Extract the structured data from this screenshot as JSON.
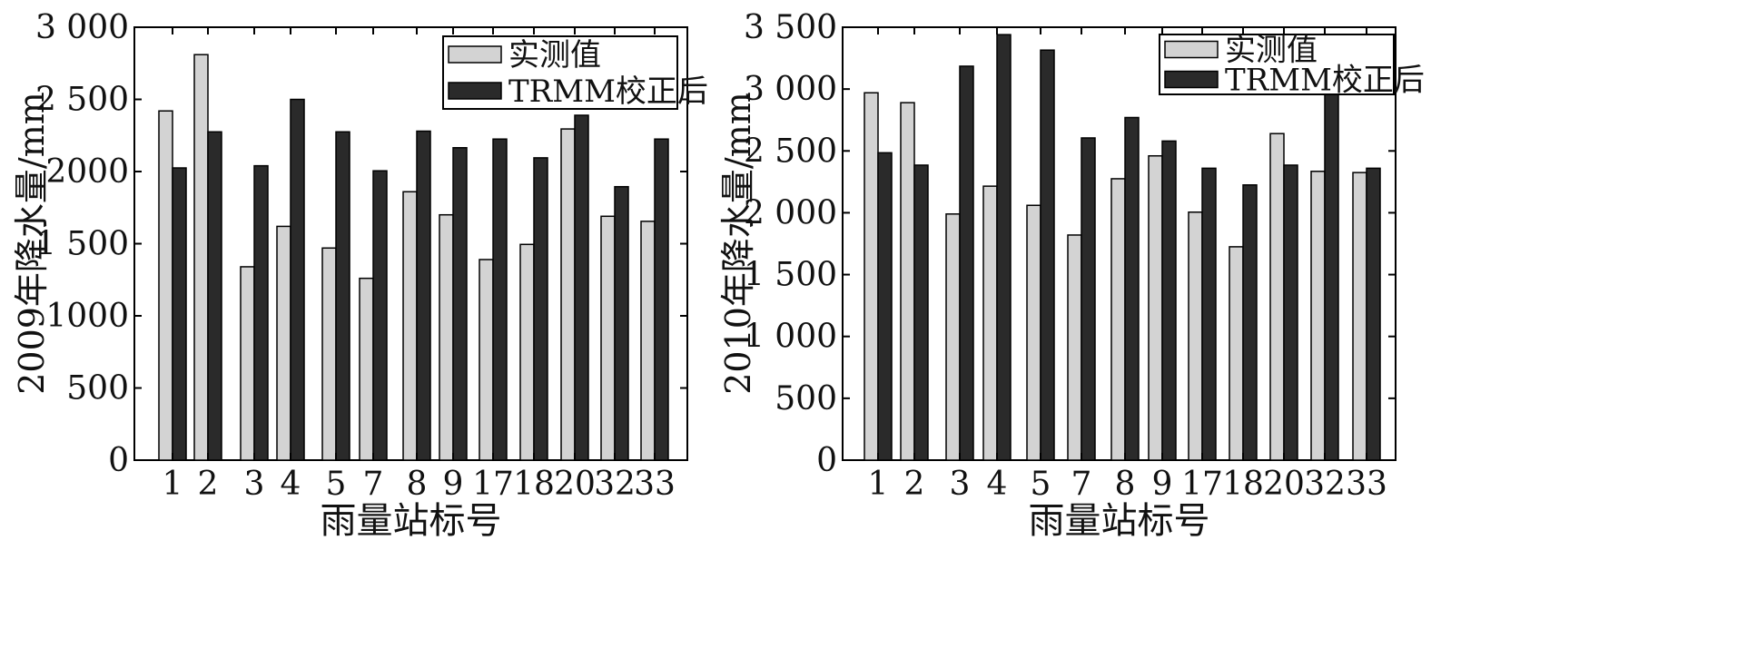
{
  "chart_data": [
    {
      "type": "bar",
      "ylabel": "2009年降水量/mm",
      "xlabel": "雨量站标号",
      "ylim": [
        0,
        3000
      ],
      "yticks": [
        0,
        500,
        1000,
        1500,
        2000,
        2500,
        3000
      ],
      "yticklabels": [
        "0",
        "500",
        "1000",
        "1 500",
        "2000",
        "2 500",
        "3 000"
      ],
      "categories": [
        "1",
        "2",
        "3",
        "4",
        "5",
        "7",
        "8",
        "9",
        "17",
        "18",
        "20",
        "32",
        "33"
      ],
      "legend_position": "top-right",
      "grid": false,
      "series": [
        {
          "name": "实测值",
          "color": "#d3d3d3",
          "values": [
            2420,
            2810,
            1340,
            1620,
            1470,
            1260,
            1860,
            1700,
            1390,
            1495,
            2295,
            1690,
            1655
          ]
        },
        {
          "name": "TRMM校正后",
          "color": "#2a2a2a",
          "values": [
            2025,
            2275,
            2040,
            2500,
            2275,
            2005,
            2280,
            2165,
            2225,
            2095,
            2390,
            1895,
            2225
          ]
        }
      ]
    },
    {
      "type": "bar",
      "ylabel": "2010年降水量/mm",
      "xlabel": "雨量站标号",
      "ylim": [
        0,
        3500
      ],
      "yticks": [
        0,
        500,
        1000,
        1500,
        2000,
        2500,
        3000,
        3500
      ],
      "yticklabels": [
        "0",
        "500",
        "1 000",
        "1 500",
        "2 000",
        "2 500",
        "3 000",
        "3 500"
      ],
      "categories": [
        "1",
        "2",
        "3",
        "4",
        "5",
        "7",
        "8",
        "9",
        "17",
        "18",
        "20",
        "32",
        "33"
      ],
      "legend_position": "top-right",
      "grid": false,
      "series": [
        {
          "name": "实测值",
          "color": "#d3d3d3",
          "values": [
            2970,
            2890,
            1990,
            2215,
            2060,
            1820,
            2275,
            2460,
            2005,
            1725,
            2640,
            2335,
            2325
          ]
        },
        {
          "name": "TRMM校正后",
          "color": "#2a2a2a",
          "values": [
            2485,
            2385,
            3185,
            3440,
            3315,
            2605,
            2770,
            2580,
            2360,
            2225,
            2385,
            2960,
            2360
          ]
        }
      ]
    }
  ]
}
